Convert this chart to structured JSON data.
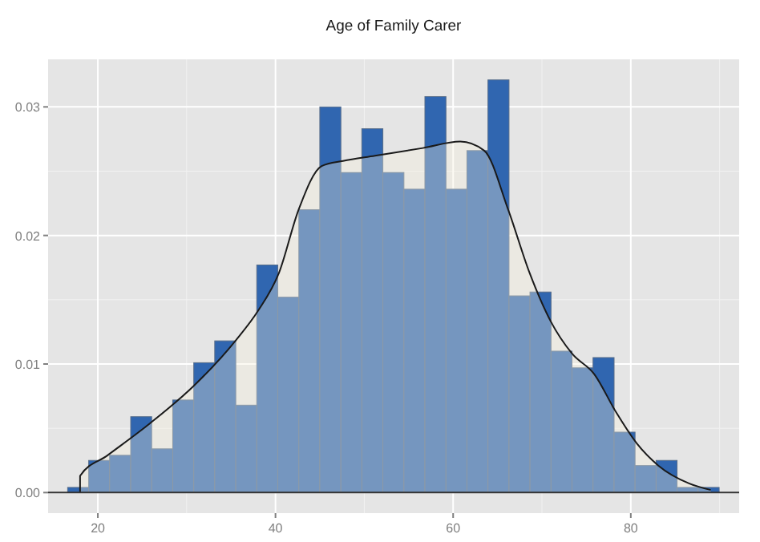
{
  "chart_data": {
    "type": "histogram",
    "title": "Age of Family Carer",
    "bins": [
      16.6,
      18.97,
      21.33,
      23.7,
      26.06,
      28.43,
      30.8,
      33.16,
      35.53,
      37.89,
      40.26,
      42.63,
      44.99,
      47.36,
      49.72,
      52.09,
      54.46,
      56.82,
      59.19,
      61.55,
      63.92,
      66.29,
      68.65,
      71.02,
      73.38,
      75.75,
      78.12,
      80.48,
      82.85,
      85.21,
      87.58,
      89.95
    ],
    "values": [
      0.0004,
      0.0025,
      0.0029,
      0.0059,
      0.0034,
      0.0072,
      0.0101,
      0.0118,
      0.0068,
      0.0177,
      0.0152,
      0.022,
      0.03,
      0.0249,
      0.0283,
      0.0249,
      0.0236,
      0.0308,
      0.0236,
      0.0266,
      0.0321,
      0.0153,
      0.0156,
      0.011,
      0.0097,
      0.0105,
      0.0047,
      0.0021,
      0.0025,
      0.0004,
      0.0004
    ],
    "color": "#3066b0",
    "series": [
      {
        "type": "area",
        "color": "#f5f0dc",
        "x": [
          18.0,
          18.0,
          21.1,
          25.9,
          30.8,
          35.6,
          38.0,
          40.4,
          42.6,
          45.2,
          47.6,
          51.2,
          56.6,
          60.8,
          63.5,
          66.2,
          68.6,
          71.0,
          73.4,
          75.9,
          78.3,
          80.7,
          83.1,
          86.6,
          89.0
        ],
        "values": [
          0,
          0.0013,
          0.0029,
          0.0054,
          0.0083,
          0.0119,
          0.0141,
          0.0171,
          0.022,
          0.0254,
          0.0258,
          0.0262,
          0.0268,
          0.0273,
          0.0266,
          0.022,
          0.0171,
          0.0133,
          0.0108,
          0.0092,
          0.0063,
          0.0038,
          0.0021,
          0.0007,
          0.0002
        ]
      }
    ],
    "xlim": [
      14.4,
      92.2
    ],
    "ylim": [
      -0.0016,
      0.0337
    ],
    "xticks": [
      20,
      40,
      60,
      80
    ],
    "yticks": [
      {
        "value": 0,
        "label": "0.00"
      },
      {
        "value": 0.01,
        "label": "0.01"
      },
      {
        "value": 0.02,
        "label": "0.02"
      },
      {
        "value": 0.03,
        "label": "0.03"
      }
    ],
    "grid": true
  }
}
